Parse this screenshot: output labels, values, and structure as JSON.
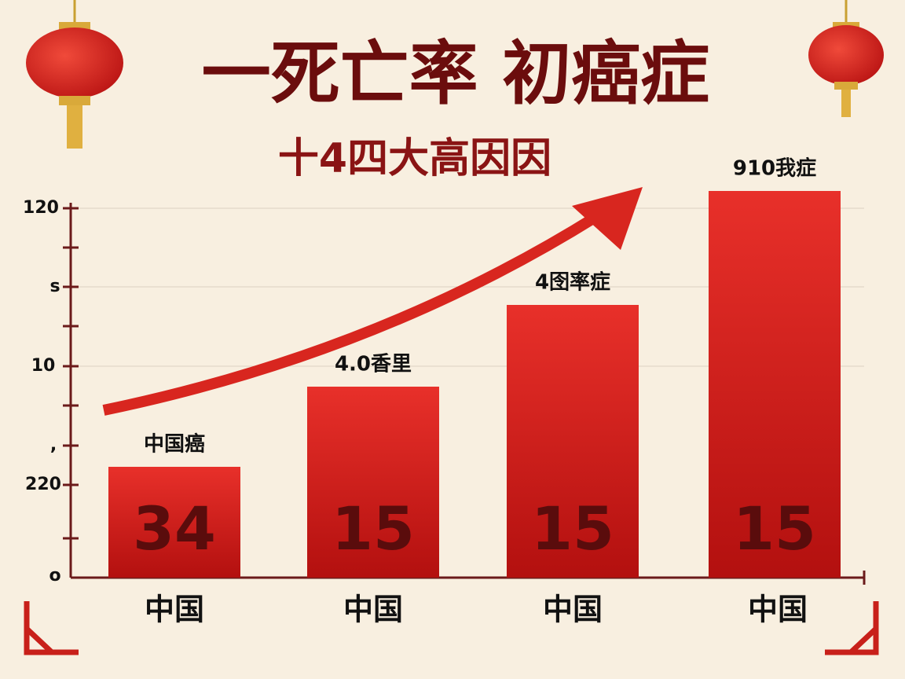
{
  "header": {
    "title": "一死亡率 初癌症",
    "subtitle": "十4四大高因因"
  },
  "y_axis": {
    "labels": [
      "120",
      "s",
      "10",
      ",",
      "220",
      "o"
    ]
  },
  "bars": [
    {
      "top_label": "中国癌",
      "value_label": "34",
      "category": "中国"
    },
    {
      "top_label": "4.0香里",
      "value_label": "15",
      "category": "中国"
    },
    {
      "top_label": "4囹率症",
      "value_label": "15",
      "category": "中国"
    },
    {
      "top_label": "910我症",
      "value_label": "15",
      "category": "中国"
    }
  ]
}
